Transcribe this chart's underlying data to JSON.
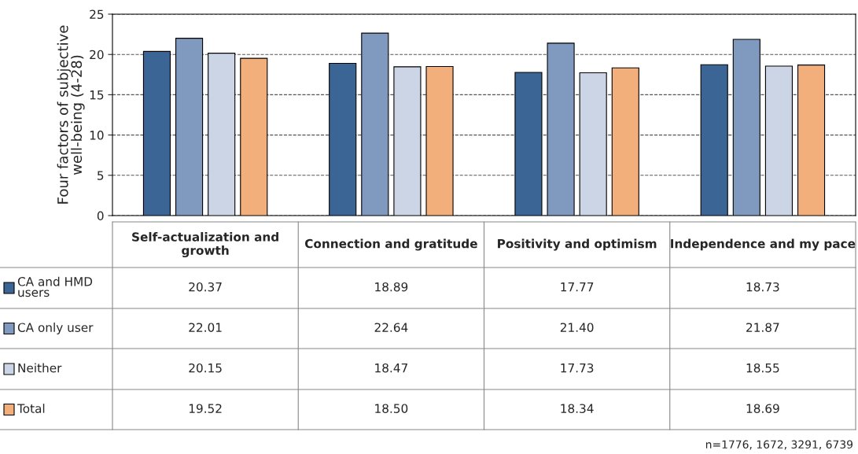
{
  "chart_data": {
    "type": "bar",
    "ylabel": "Four factors of subjective\nwell-being (4-28)",
    "categories": [
      "Self-actualization and\ngrowth",
      "Connection and gratitude",
      "Positivity and optimism",
      "Independence and my pace"
    ],
    "series": [
      {
        "name": "CA and HMD\nusers",
        "color": "#3a6595",
        "values": [
          20.37,
          18.89,
          17.77,
          18.73
        ]
      },
      {
        "name": "CA only user",
        "color": "#7f99bf",
        "values": [
          22.01,
          22.64,
          21.4,
          21.87
        ]
      },
      {
        "name": "Neither",
        "color": "#cbd5e6",
        "values": [
          20.15,
          18.47,
          17.73,
          18.55
        ]
      },
      {
        "name": "Total",
        "color": "#f2ae7b",
        "values": [
          19.52,
          18.5,
          18.34,
          18.69
        ]
      }
    ],
    "value_labels": [
      [
        "20.37",
        "18.89",
        "17.77",
        "18.73"
      ],
      [
        "22.01",
        "22.64",
        "21.40",
        "21.87"
      ],
      [
        "20.15",
        "18.47",
        "17.73",
        "18.55"
      ],
      [
        "19.52",
        "18.50",
        "18.34",
        "18.69"
      ]
    ],
    "ylim": [
      0,
      25
    ],
    "yticks": [
      0,
      5,
      10,
      15,
      20,
      25
    ],
    "grid": "y",
    "legend": "bottom",
    "tick_labels": "y",
    "annotations": [
      "n=1776, 1672, 3291, 6739"
    ]
  }
}
